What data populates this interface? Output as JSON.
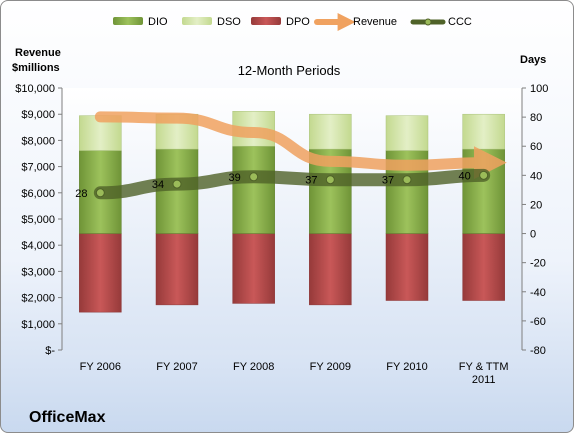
{
  "chart_data": {
    "type": "bar",
    "title": "12-Month Periods",
    "company": "OfficeMax",
    "categories": [
      "FY 2006",
      "FY 2007",
      "FY 2008",
      "FY 2009",
      "FY 2010",
      "FY & TTM 2011"
    ],
    "y_left_label_line1": "Revenue",
    "y_left_label_line2": "$millions",
    "y_right_label": "Days",
    "y_left_range": [
      0,
      10000
    ],
    "y_left_ticks": [
      "$-",
      "$1,000",
      "$2,000",
      "$3,000",
      "$4,000",
      "$5,000",
      "$6,000",
      "$7,000",
      "$8,000",
      "$9,000",
      "$10,000"
    ],
    "y_right_range": [
      -80,
      100
    ],
    "y_right_ticks": [
      "-80",
      "-60",
      "-40",
      "-20",
      "0",
      "20",
      "40",
      "60",
      "80",
      "100"
    ],
    "grid": false,
    "legend_position": "top",
    "series": [
      {
        "name": "DIO",
        "kind": "bar",
        "axis": "right",
        "color": "#8db04b",
        "values": [
          57,
          58,
          60,
          58,
          57,
          58
        ]
      },
      {
        "name": "DSO",
        "kind": "bar",
        "axis": "right",
        "color": "#d4e5ab",
        "values": [
          24,
          24,
          24,
          24,
          24,
          24
        ]
      },
      {
        "name": "DPO",
        "kind": "bar",
        "axis": "right",
        "color": "#b64a4a",
        "values": [
          -54,
          -49,
          -48,
          -49,
          -46,
          -46
        ]
      },
      {
        "name": "Revenue",
        "kind": "line",
        "axis": "left",
        "color": "#f0a260",
        "values": [
          8900,
          8850,
          8300,
          7200,
          7050,
          7150
        ]
      },
      {
        "name": "CCC",
        "kind": "line",
        "axis": "right",
        "color": "#4f6228",
        "values": [
          28,
          34,
          39,
          37,
          37,
          40
        ]
      }
    ],
    "data_labels": [
      "28",
      "34",
      "39",
      "37",
      "37",
      "40"
    ]
  }
}
